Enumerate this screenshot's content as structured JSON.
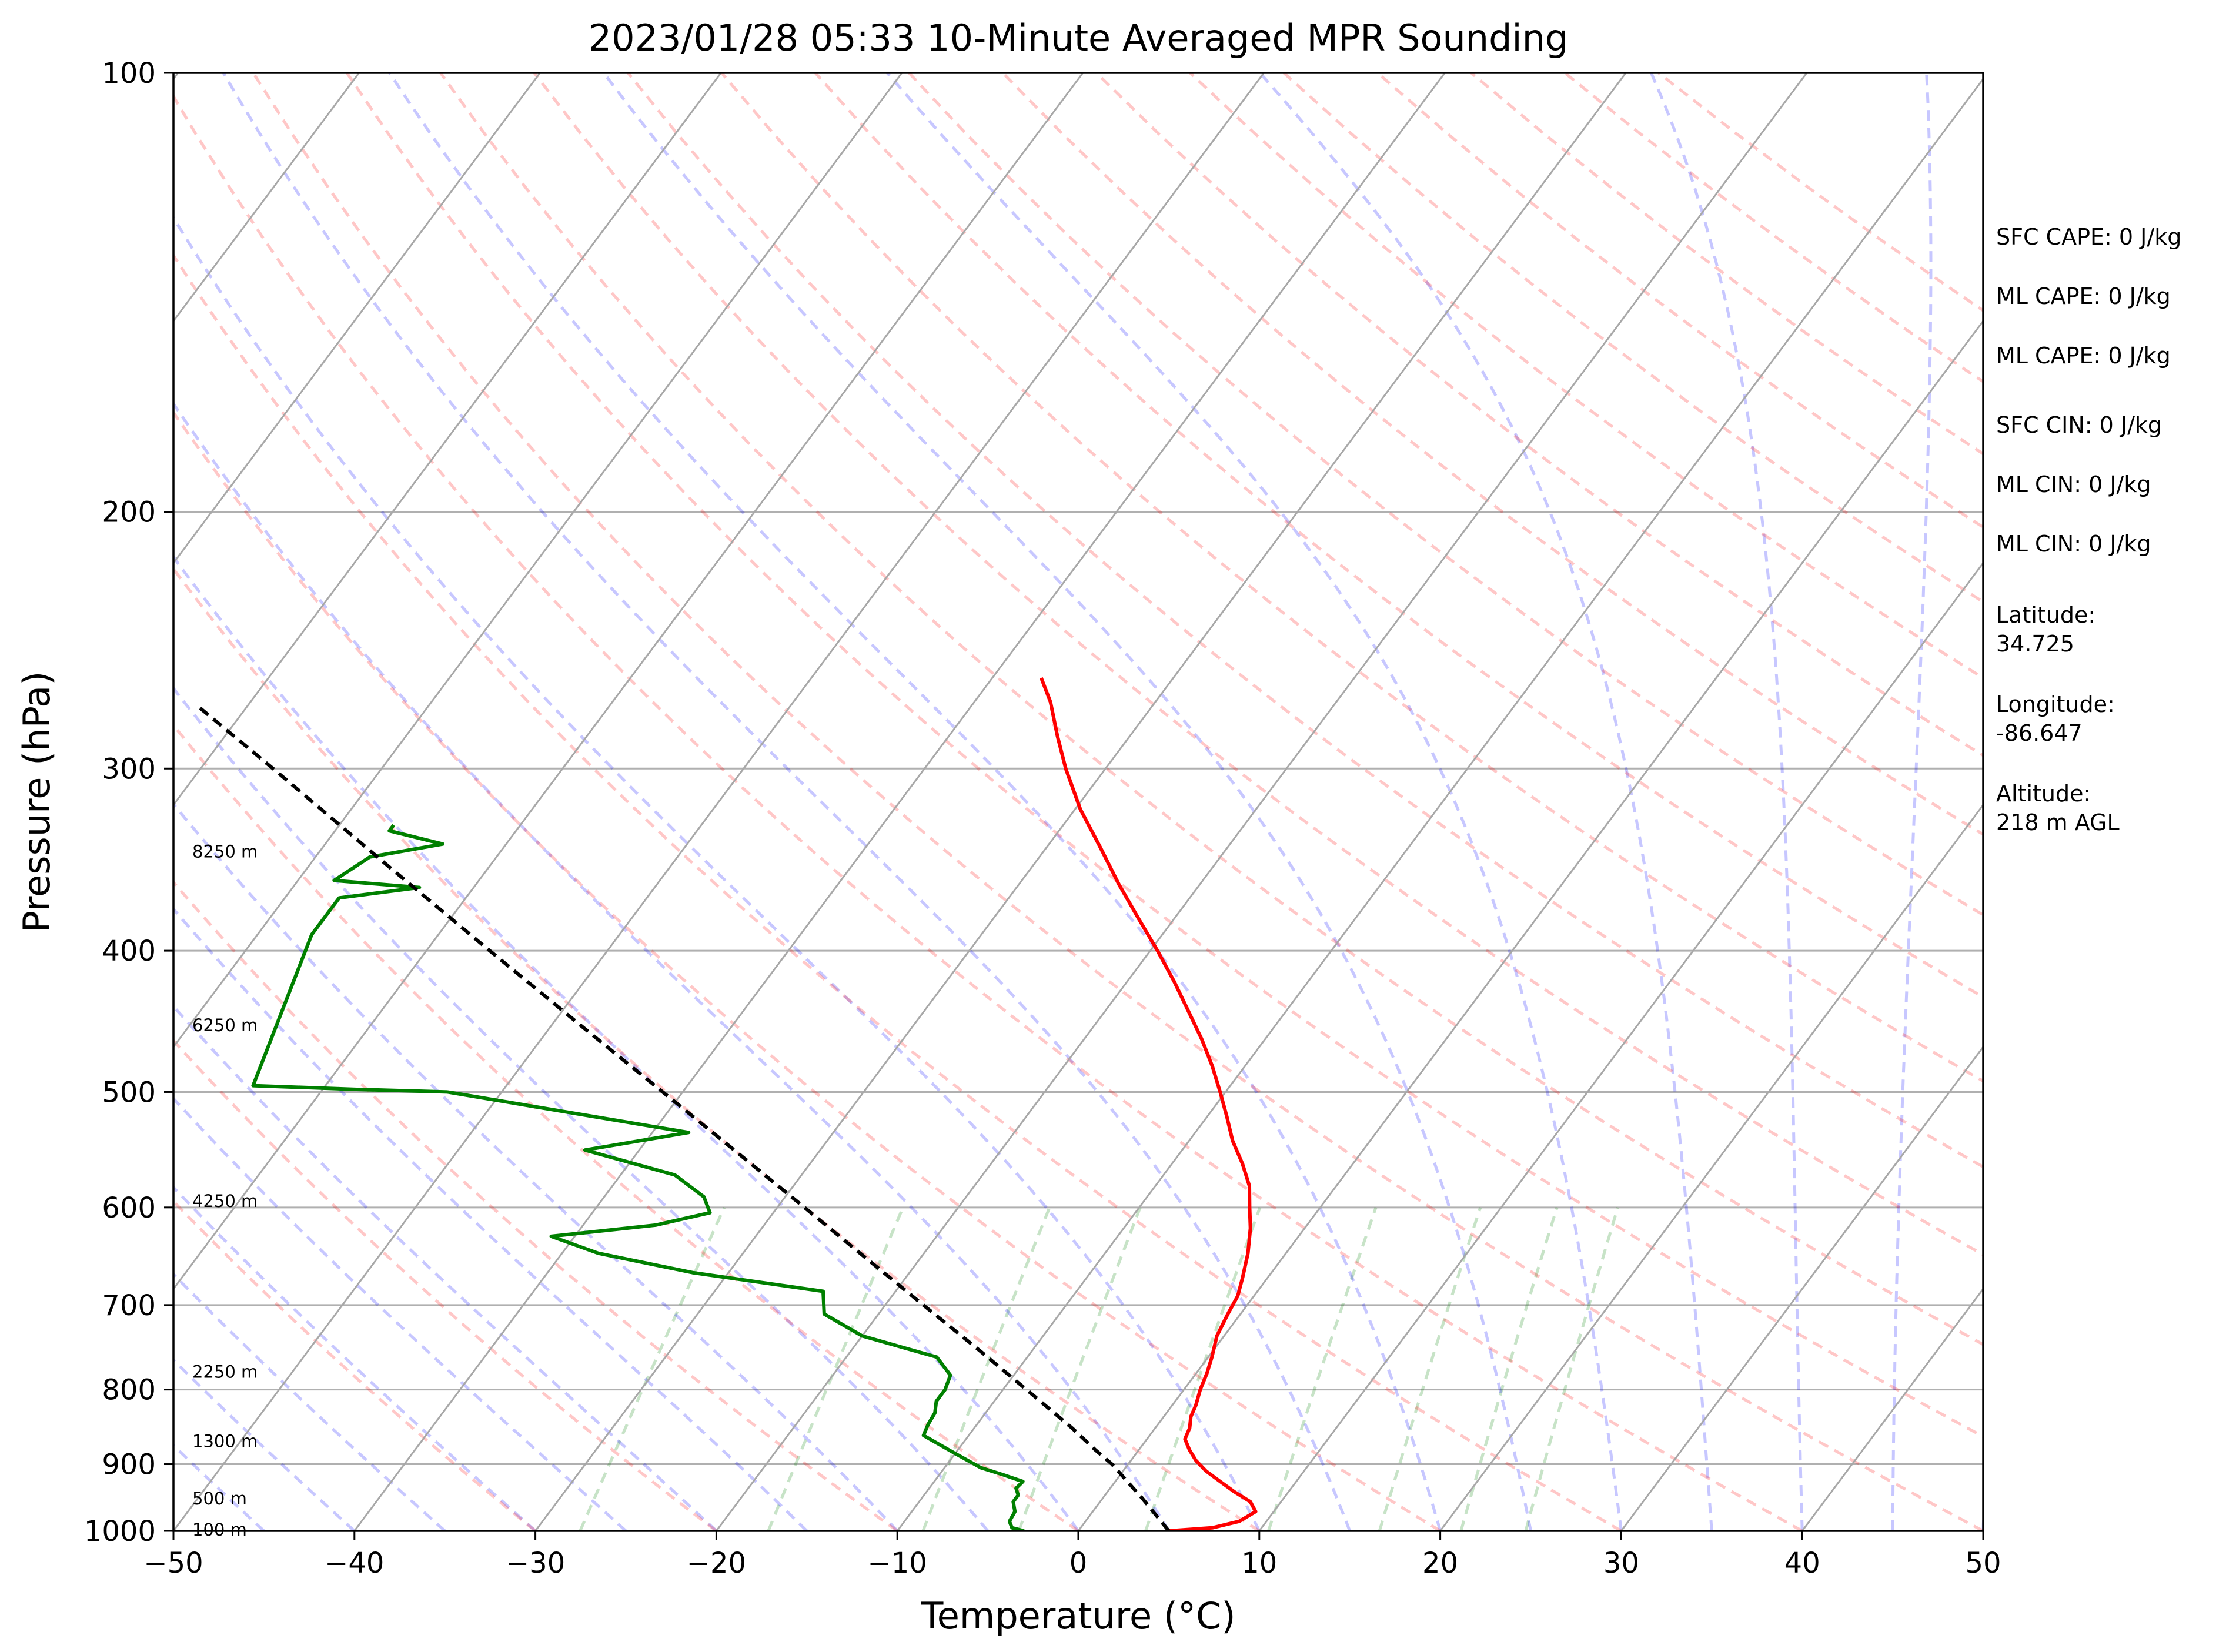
{
  "chart_data": {
    "type": "line",
    "chart_kind": "skew-T log-P sounding",
    "title": "2023/01/28 05:33 10-Minute Averaged MPR Sounding",
    "xlabel": "Temperature (°C)",
    "ylabel": "Pressure (hPa)",
    "xlim": [
      -50,
      50
    ],
    "ylim": [
      1000,
      100
    ],
    "y_scale": "log",
    "x_ticks": [
      -50,
      -40,
      -30,
      -20,
      -10,
      0,
      10,
      20,
      30,
      40,
      50
    ],
    "x_tick_labels": [
      "−50",
      "−40",
      "−30",
      "−20",
      "−10",
      "0",
      "10",
      "20",
      "30",
      "40",
      "50"
    ],
    "y_ticks": [
      100,
      200,
      300,
      400,
      500,
      600,
      700,
      800,
      900,
      1000
    ],
    "y_tick_labels": [
      "100",
      "200",
      "300",
      "400",
      "500",
      "600",
      "700",
      "800",
      "900",
      "1000"
    ],
    "grid": true,
    "reference_lines": {
      "isotherms_every_deg": 10,
      "dry_adiabats": "dashed red",
      "moist_adiabats": "dashed blue",
      "mixing_ratio_lines": "dashed green"
    },
    "series": [
      {
        "role": "temperature",
        "color": "#ff0000",
        "points": [
          [
            1000,
            5.0
          ],
          [
            995,
            7.3
          ],
          [
            985,
            8.5
          ],
          [
            970,
            9.0
          ],
          [
            955,
            8.3
          ],
          [
            940,
            7.0
          ],
          [
            925,
            5.8
          ],
          [
            910,
            4.6
          ],
          [
            895,
            3.6
          ],
          [
            880,
            2.8
          ],
          [
            865,
            2.1
          ],
          [
            850,
            1.9
          ],
          [
            835,
            1.5
          ],
          [
            820,
            1.3
          ],
          [
            800,
            0.9
          ],
          [
            780,
            0.6
          ],
          [
            760,
            0.2
          ],
          [
            735,
            -0.4
          ],
          [
            710,
            -0.7
          ],
          [
            690,
            -0.9
          ],
          [
            670,
            -1.4
          ],
          [
            645,
            -2.1
          ],
          [
            620,
            -3.0
          ],
          [
            600,
            -3.9
          ],
          [
            580,
            -4.8
          ],
          [
            560,
            -6.1
          ],
          [
            540,
            -7.6
          ],
          [
            520,
            -8.9
          ],
          [
            500,
            -10.3
          ],
          [
            480,
            -11.8
          ],
          [
            460,
            -13.5
          ],
          [
            440,
            -15.4
          ],
          [
            420,
            -17.4
          ],
          [
            400,
            -19.6
          ],
          [
            380,
            -22.0
          ],
          [
            360,
            -24.5
          ],
          [
            340,
            -27.0
          ],
          [
            320,
            -29.7
          ],
          [
            300,
            -32.2
          ],
          [
            285,
            -34.0
          ],
          [
            270,
            -35.8
          ],
          [
            260,
            -37.3
          ]
        ]
      },
      {
        "role": "dewpoint",
        "color": "#008000",
        "points": [
          [
            1000,
            -3.0
          ],
          [
            995,
            -3.8
          ],
          [
            985,
            -4.2
          ],
          [
            970,
            -4.3
          ],
          [
            955,
            -4.8
          ],
          [
            945,
            -4.8
          ],
          [
            935,
            -5.2
          ],
          [
            925,
            -5.1
          ],
          [
            915,
            -6.5
          ],
          [
            905,
            -8.0
          ],
          [
            885,
            -10.0
          ],
          [
            860,
            -12.5
          ],
          [
            845,
            -12.7
          ],
          [
            830,
            -12.8
          ],
          [
            815,
            -13.2
          ],
          [
            800,
            -13.2
          ],
          [
            782,
            -13.5
          ],
          [
            760,
            -15.0
          ],
          [
            735,
            -20.0
          ],
          [
            710,
            -23.0
          ],
          [
            685,
            -24.0
          ],
          [
            665,
            -32.0
          ],
          [
            645,
            -38.0
          ],
          [
            628,
            -41.3
          ],
          [
            617,
            -36.0
          ],
          [
            605,
            -33.5
          ],
          [
            590,
            -34.5
          ],
          [
            570,
            -37.0
          ],
          [
            548,
            -43.0
          ],
          [
            533,
            -38.0
          ],
          [
            500,
            -53.0
          ],
          [
            498,
            -58.0
          ],
          [
            495,
            -64.0
          ],
          [
            390,
            -67.0
          ],
          [
            385,
            -67.0
          ],
          [
            368,
            -67.0
          ],
          [
            362,
            -63.0
          ],
          [
            358,
            -68.0
          ],
          [
            345,
            -67.0
          ],
          [
            338,
            -63.5
          ],
          [
            331,
            -67.0
          ],
          [
            328,
            -67.0
          ]
        ]
      },
      {
        "role": "parcel",
        "color": "#000000",
        "points": [
          [
            1000,
            5.0
          ],
          [
            950,
            2.2
          ],
          [
            900,
            -0.9
          ],
          [
            880,
            -2.4
          ],
          [
            850,
            -4.6
          ],
          [
            800,
            -8.7
          ],
          [
            750,
            -13.1
          ],
          [
            700,
            -17.9
          ],
          [
            650,
            -23.0
          ],
          [
            600,
            -28.5
          ],
          [
            550,
            -34.5
          ],
          [
            500,
            -41.1
          ],
          [
            450,
            -48.4
          ],
          [
            400,
            -56.5
          ],
          [
            350,
            -65.6
          ],
          [
            300,
            -76.0
          ],
          [
            272,
            -82.7
          ]
        ]
      }
    ],
    "height_labels": [
      {
        "text": "100 m",
        "p": 998
      },
      {
        "text": "500 m",
        "p": 950
      },
      {
        "text": "1300 m",
        "p": 868
      },
      {
        "text": "2250 m",
        "p": 778
      },
      {
        "text": "4250 m",
        "p": 594
      },
      {
        "text": "6250 m",
        "p": 450
      },
      {
        "text": "8250 m",
        "p": 342
      }
    ],
    "annotations": [
      "SFC CAPE: 0 J/kg",
      "ML CAPE: 0 J/kg",
      "ML CAPE: 0 J/kg",
      "SFC CIN: 0 J/kg",
      "ML CIN: 0 J/kg",
      "ML CIN: 0 J/kg"
    ],
    "site": {
      "latitude_label": "Latitude:",
      "latitude": "34.725",
      "longitude_label": "Longitude:",
      "longitude": "-86.647",
      "altitude_label": "Altitude:",
      "altitude": "218 m AGL"
    }
  }
}
